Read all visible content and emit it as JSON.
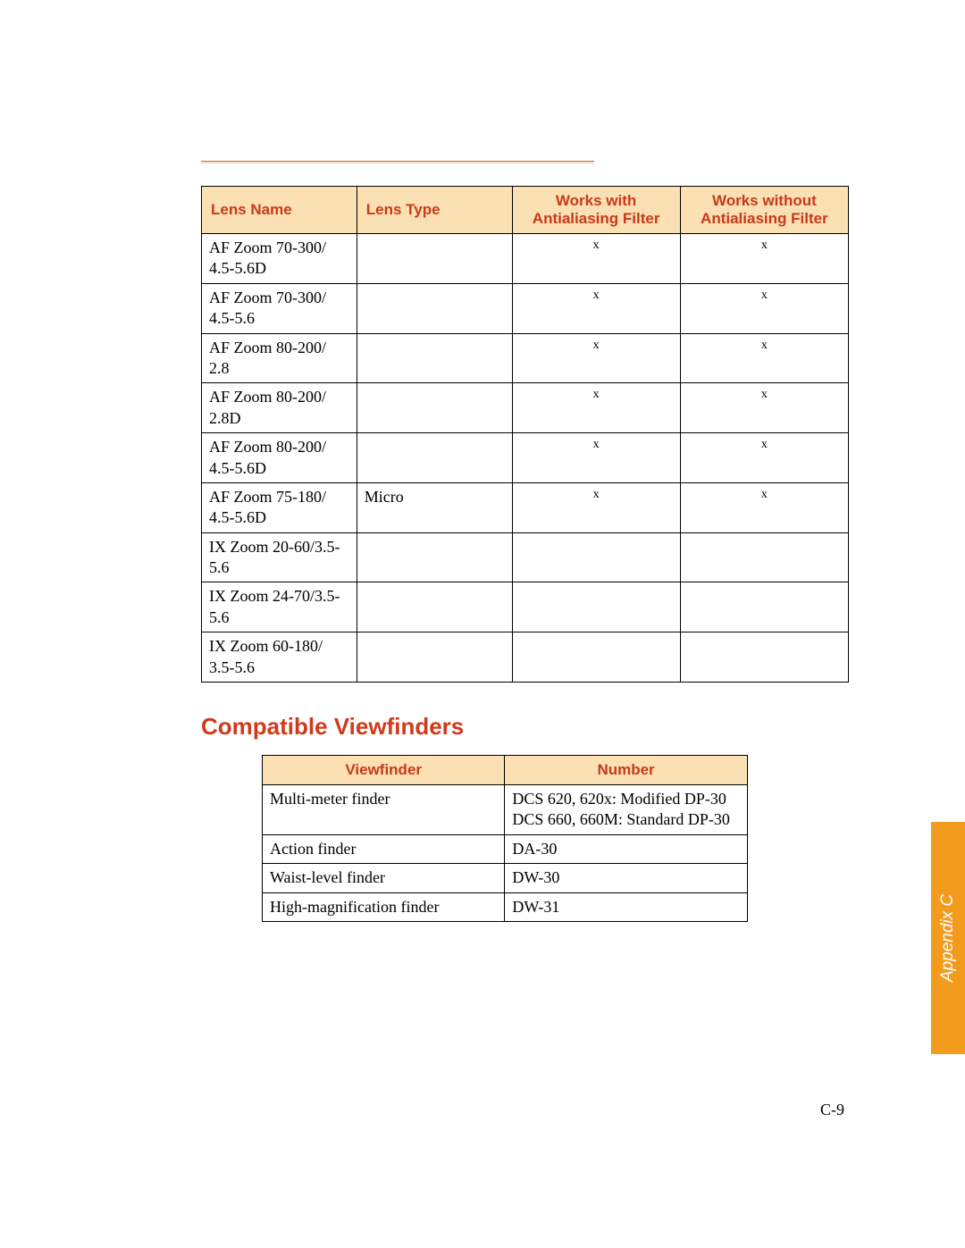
{
  "colors": {
    "header_bg": "#fbe0b3",
    "header_text": "#c73a1a",
    "heading_text": "#d13a1a",
    "tab_bg": "#f29b1d",
    "tab_text": "#ffffff",
    "rule_top": "#d94f2a",
    "rule_bottom": "#f5c77a",
    "border": "#000000"
  },
  "lens_table": {
    "headers": {
      "name": "Lens Name",
      "type": "Lens Type",
      "with": "Works with Antialiasing Filter",
      "without": "Works without Antialiasing Filter"
    },
    "rows": [
      {
        "name": "AF Zoom 70-300/\n4.5-5.6D",
        "type": "",
        "with": "x",
        "without": "x"
      },
      {
        "name": "AF Zoom 70-300/\n4.5-5.6",
        "type": "",
        "with": "x",
        "without": "x"
      },
      {
        "name": "AF Zoom 80-200/\n2.8",
        "type": "",
        "with": "x",
        "without": "x"
      },
      {
        "name": "AF Zoom 80-200/\n2.8D",
        "type": "",
        "with": "x",
        "without": "x"
      },
      {
        "name": "AF Zoom 80-200/\n4.5-5.6D",
        "type": "",
        "with": "x",
        "without": "x"
      },
      {
        "name": "AF Zoom 75-180/\n4.5-5.6D",
        "type": "Micro",
        "with": "x",
        "without": "x"
      },
      {
        "name": "IX Zoom 20-60/3.5-\n5.6",
        "type": "",
        "with": "",
        "without": ""
      },
      {
        "name": "IX Zoom 24-70/3.5-\n5.6",
        "type": "",
        "with": "",
        "without": ""
      },
      {
        "name": "IX Zoom 60-180/\n3.5-5.6",
        "type": "",
        "with": "",
        "without": ""
      }
    ]
  },
  "section_heading": "Compatible Viewfinders",
  "vf_table": {
    "headers": {
      "vf": "Viewfinder",
      "num": "Number"
    },
    "rows": [
      {
        "vf": "Multi-meter finder",
        "num": "DCS 620, 620x: Modified DP-30\nDCS 660, 660M: Standard DP-30"
      },
      {
        "vf": "Action finder",
        "num": "DA-30"
      },
      {
        "vf": "Waist-level finder",
        "num": "DW-30"
      },
      {
        "vf": "High-magnification finder",
        "num": "DW-31"
      }
    ]
  },
  "side_tab": "Appendix C",
  "page_number": "C-9"
}
